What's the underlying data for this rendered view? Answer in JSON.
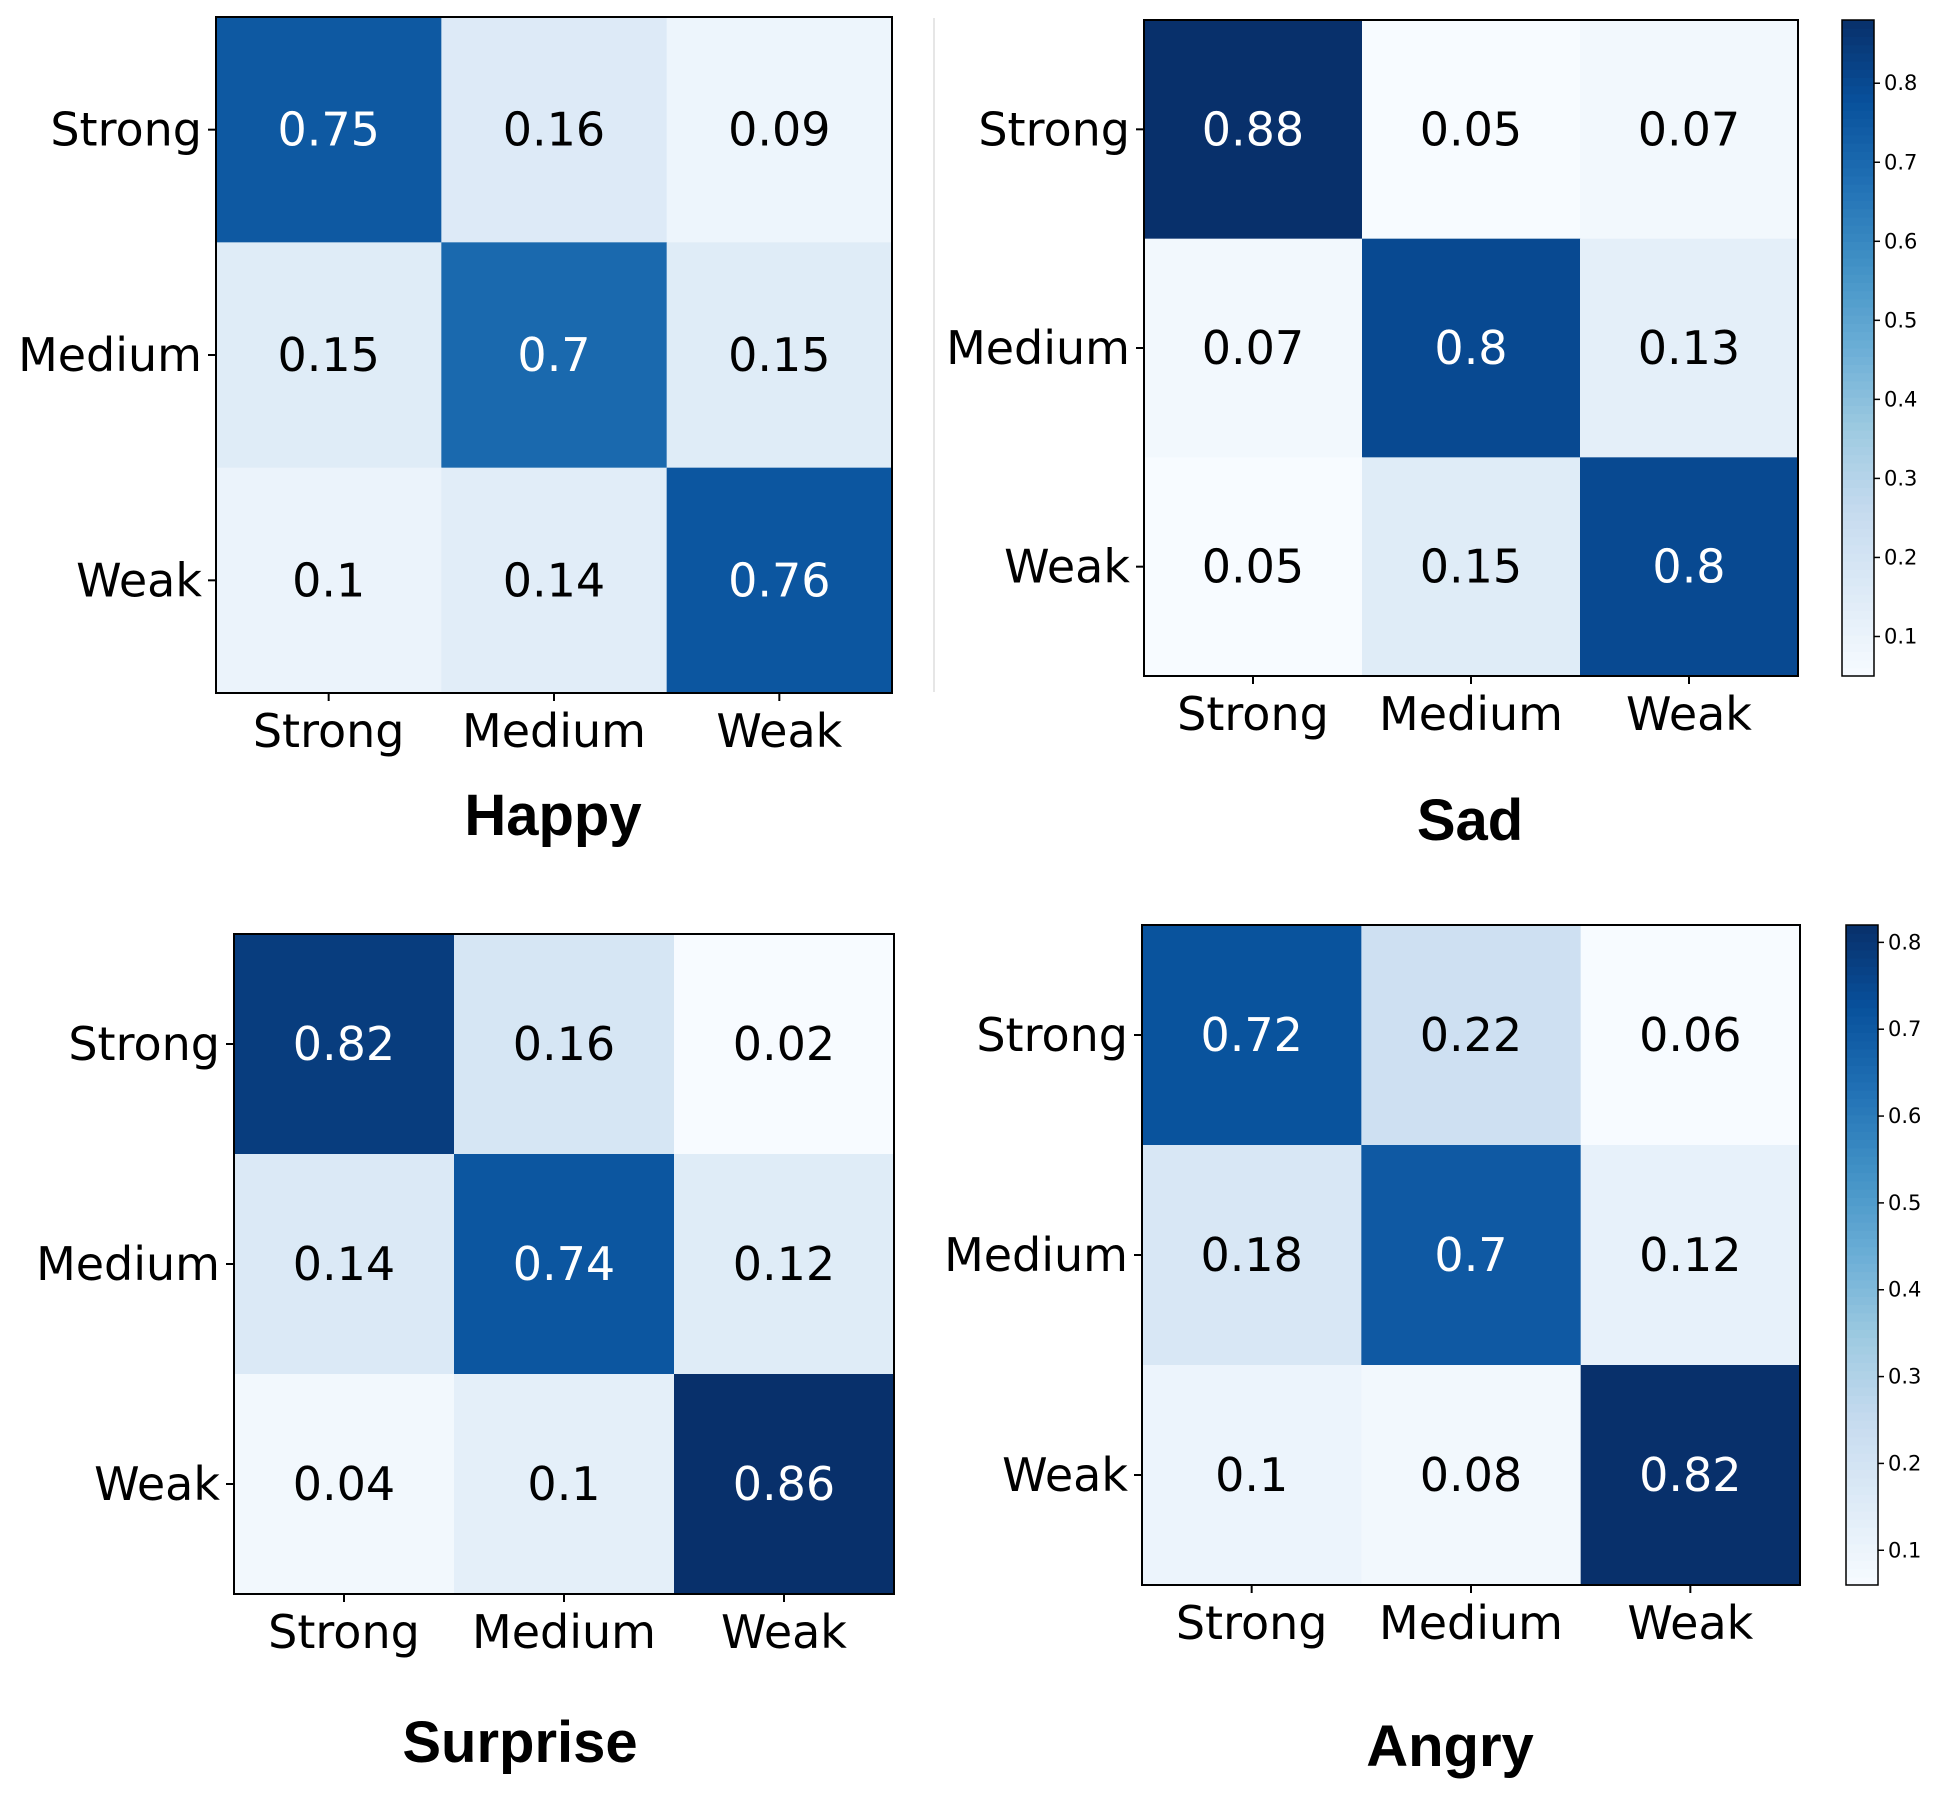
{
  "chart_data": [
    {
      "type": "heatmap",
      "title": "Happy",
      "row_labels": [
        "Strong",
        "Medium",
        "Weak"
      ],
      "col_labels": [
        "Strong",
        "Medium",
        "Weak"
      ],
      "values": [
        [
          0.75,
          0.16,
          0.09
        ],
        [
          0.15,
          0.7,
          0.15
        ],
        [
          0.1,
          0.14,
          0.76
        ]
      ],
      "value_labels": [
        [
          "0.75",
          "0.16",
          "0.09"
        ],
        [
          "0.15",
          "0.7",
          "0.15"
        ],
        [
          "0.1",
          "0.14",
          "0.76"
        ]
      ],
      "colorscale": "Blues",
      "vmin": 0.05,
      "vmax": 0.88
    },
    {
      "type": "heatmap",
      "title": "Sad",
      "row_labels": [
        "Strong",
        "Medium",
        "Weak"
      ],
      "col_labels": [
        "Strong",
        "Medium",
        "Weak"
      ],
      "values": [
        [
          0.88,
          0.05,
          0.07
        ],
        [
          0.07,
          0.8,
          0.13
        ],
        [
          0.05,
          0.15,
          0.8
        ]
      ],
      "value_labels": [
        [
          "0.88",
          "0.05",
          "0.07"
        ],
        [
          "0.07",
          "0.8",
          "0.13"
        ],
        [
          "0.05",
          "0.15",
          "0.8"
        ]
      ],
      "colorscale": "Blues",
      "vmin": 0.05,
      "vmax": 0.88,
      "colorbar": {
        "range": [
          0.05,
          0.88
        ],
        "ticks": [
          0.1,
          0.2,
          0.3,
          0.4,
          0.5,
          0.6,
          0.7,
          0.8
        ],
        "tick_labels": [
          "0.1",
          "0.2",
          "0.3",
          "0.4",
          "0.5",
          "0.6",
          "0.7",
          "0.8"
        ]
      }
    },
    {
      "type": "heatmap",
      "title": "Surprise",
      "row_labels": [
        "Strong",
        "Medium",
        "Weak"
      ],
      "col_labels": [
        "Strong",
        "Medium",
        "Weak"
      ],
      "values": [
        [
          0.82,
          0.16,
          0.02
        ],
        [
          0.14,
          0.74,
          0.12
        ],
        [
          0.04,
          0.1,
          0.86
        ]
      ],
      "value_labels": [
        [
          "0.82",
          "0.16",
          "0.02"
        ],
        [
          "0.14",
          "0.74",
          "0.12"
        ],
        [
          "0.04",
          "0.1",
          "0.86"
        ]
      ],
      "colorscale": "Blues",
      "vmin": 0.02,
      "vmax": 0.86
    },
    {
      "type": "heatmap",
      "title": "Angry",
      "row_labels": [
        "Strong",
        "Medium",
        "Weak"
      ],
      "col_labels": [
        "Strong",
        "Medium",
        "Weak"
      ],
      "values": [
        [
          0.72,
          0.22,
          0.06
        ],
        [
          0.18,
          0.7,
          0.12
        ],
        [
          0.1,
          0.08,
          0.82
        ]
      ],
      "value_labels": [
        [
          "0.72",
          "0.22",
          "0.06"
        ],
        [
          "0.18",
          "0.7",
          "0.12"
        ],
        [
          "0.1",
          "0.08",
          "0.82"
        ]
      ],
      "colorscale": "Blues",
      "vmin": 0.06,
      "vmax": 0.82,
      "colorbar": {
        "range": [
          0.06,
          0.82
        ],
        "ticks": [
          0.1,
          0.2,
          0.3,
          0.4,
          0.5,
          0.6,
          0.7,
          0.8
        ],
        "tick_labels": [
          "0.1",
          "0.2",
          "0.3",
          "0.4",
          "0.5",
          "0.6",
          "0.7",
          "0.8"
        ]
      }
    }
  ]
}
